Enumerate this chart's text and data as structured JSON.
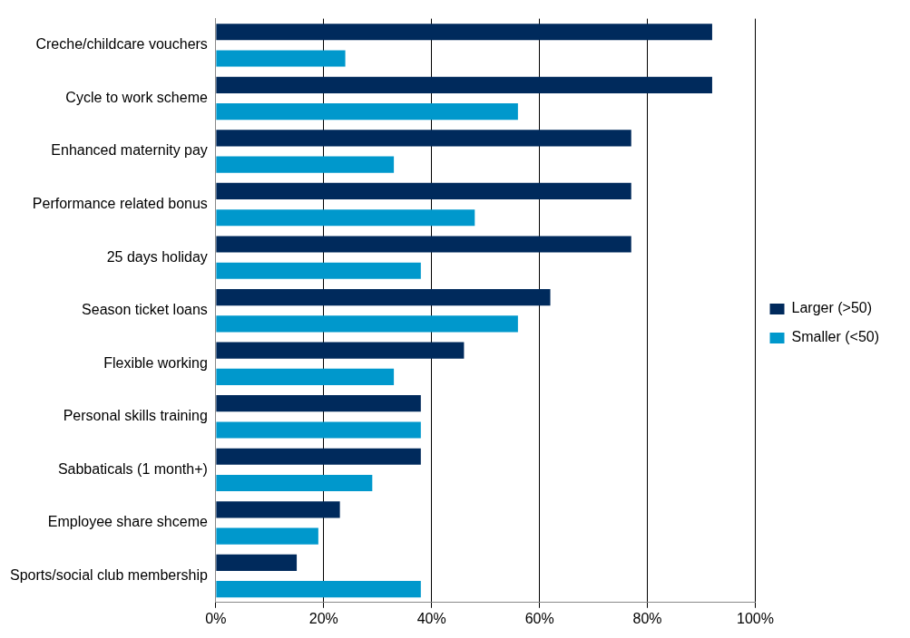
{
  "chart_data": {
    "type": "bar",
    "orientation": "horizontal",
    "categories": [
      "Creche/childcare vouchers",
      "Cycle to work scheme",
      "Enhanced maternity pay",
      "Performance related bonus",
      "25 days holiday",
      "Season ticket loans",
      "Flexible working",
      "Personal skills training",
      "Sabbaticals (1 month+)",
      "Employee share shceme",
      "Sports/social club membership"
    ],
    "series": [
      {
        "name": "Larger (>50)",
        "color": "#002a5c",
        "values": [
          92,
          92,
          77,
          77,
          77,
          62,
          46,
          38,
          38,
          23,
          15
        ]
      },
      {
        "name": "Smaller (<50)",
        "color": "#0098cc",
        "values": [
          24,
          56,
          33,
          48,
          38,
          56,
          33,
          38,
          29,
          19,
          38
        ]
      }
    ],
    "xlim": [
      0,
      100
    ],
    "xticks": [
      {
        "value": 0,
        "label": "0%"
      },
      {
        "value": 20,
        "label": "20%"
      },
      {
        "value": 40,
        "label": "40%"
      },
      {
        "value": 60,
        "label": "60%"
      },
      {
        "value": 80,
        "label": "80%"
      },
      {
        "value": 100,
        "label": "100%"
      }
    ],
    "grid": "x",
    "legend": "right"
  }
}
